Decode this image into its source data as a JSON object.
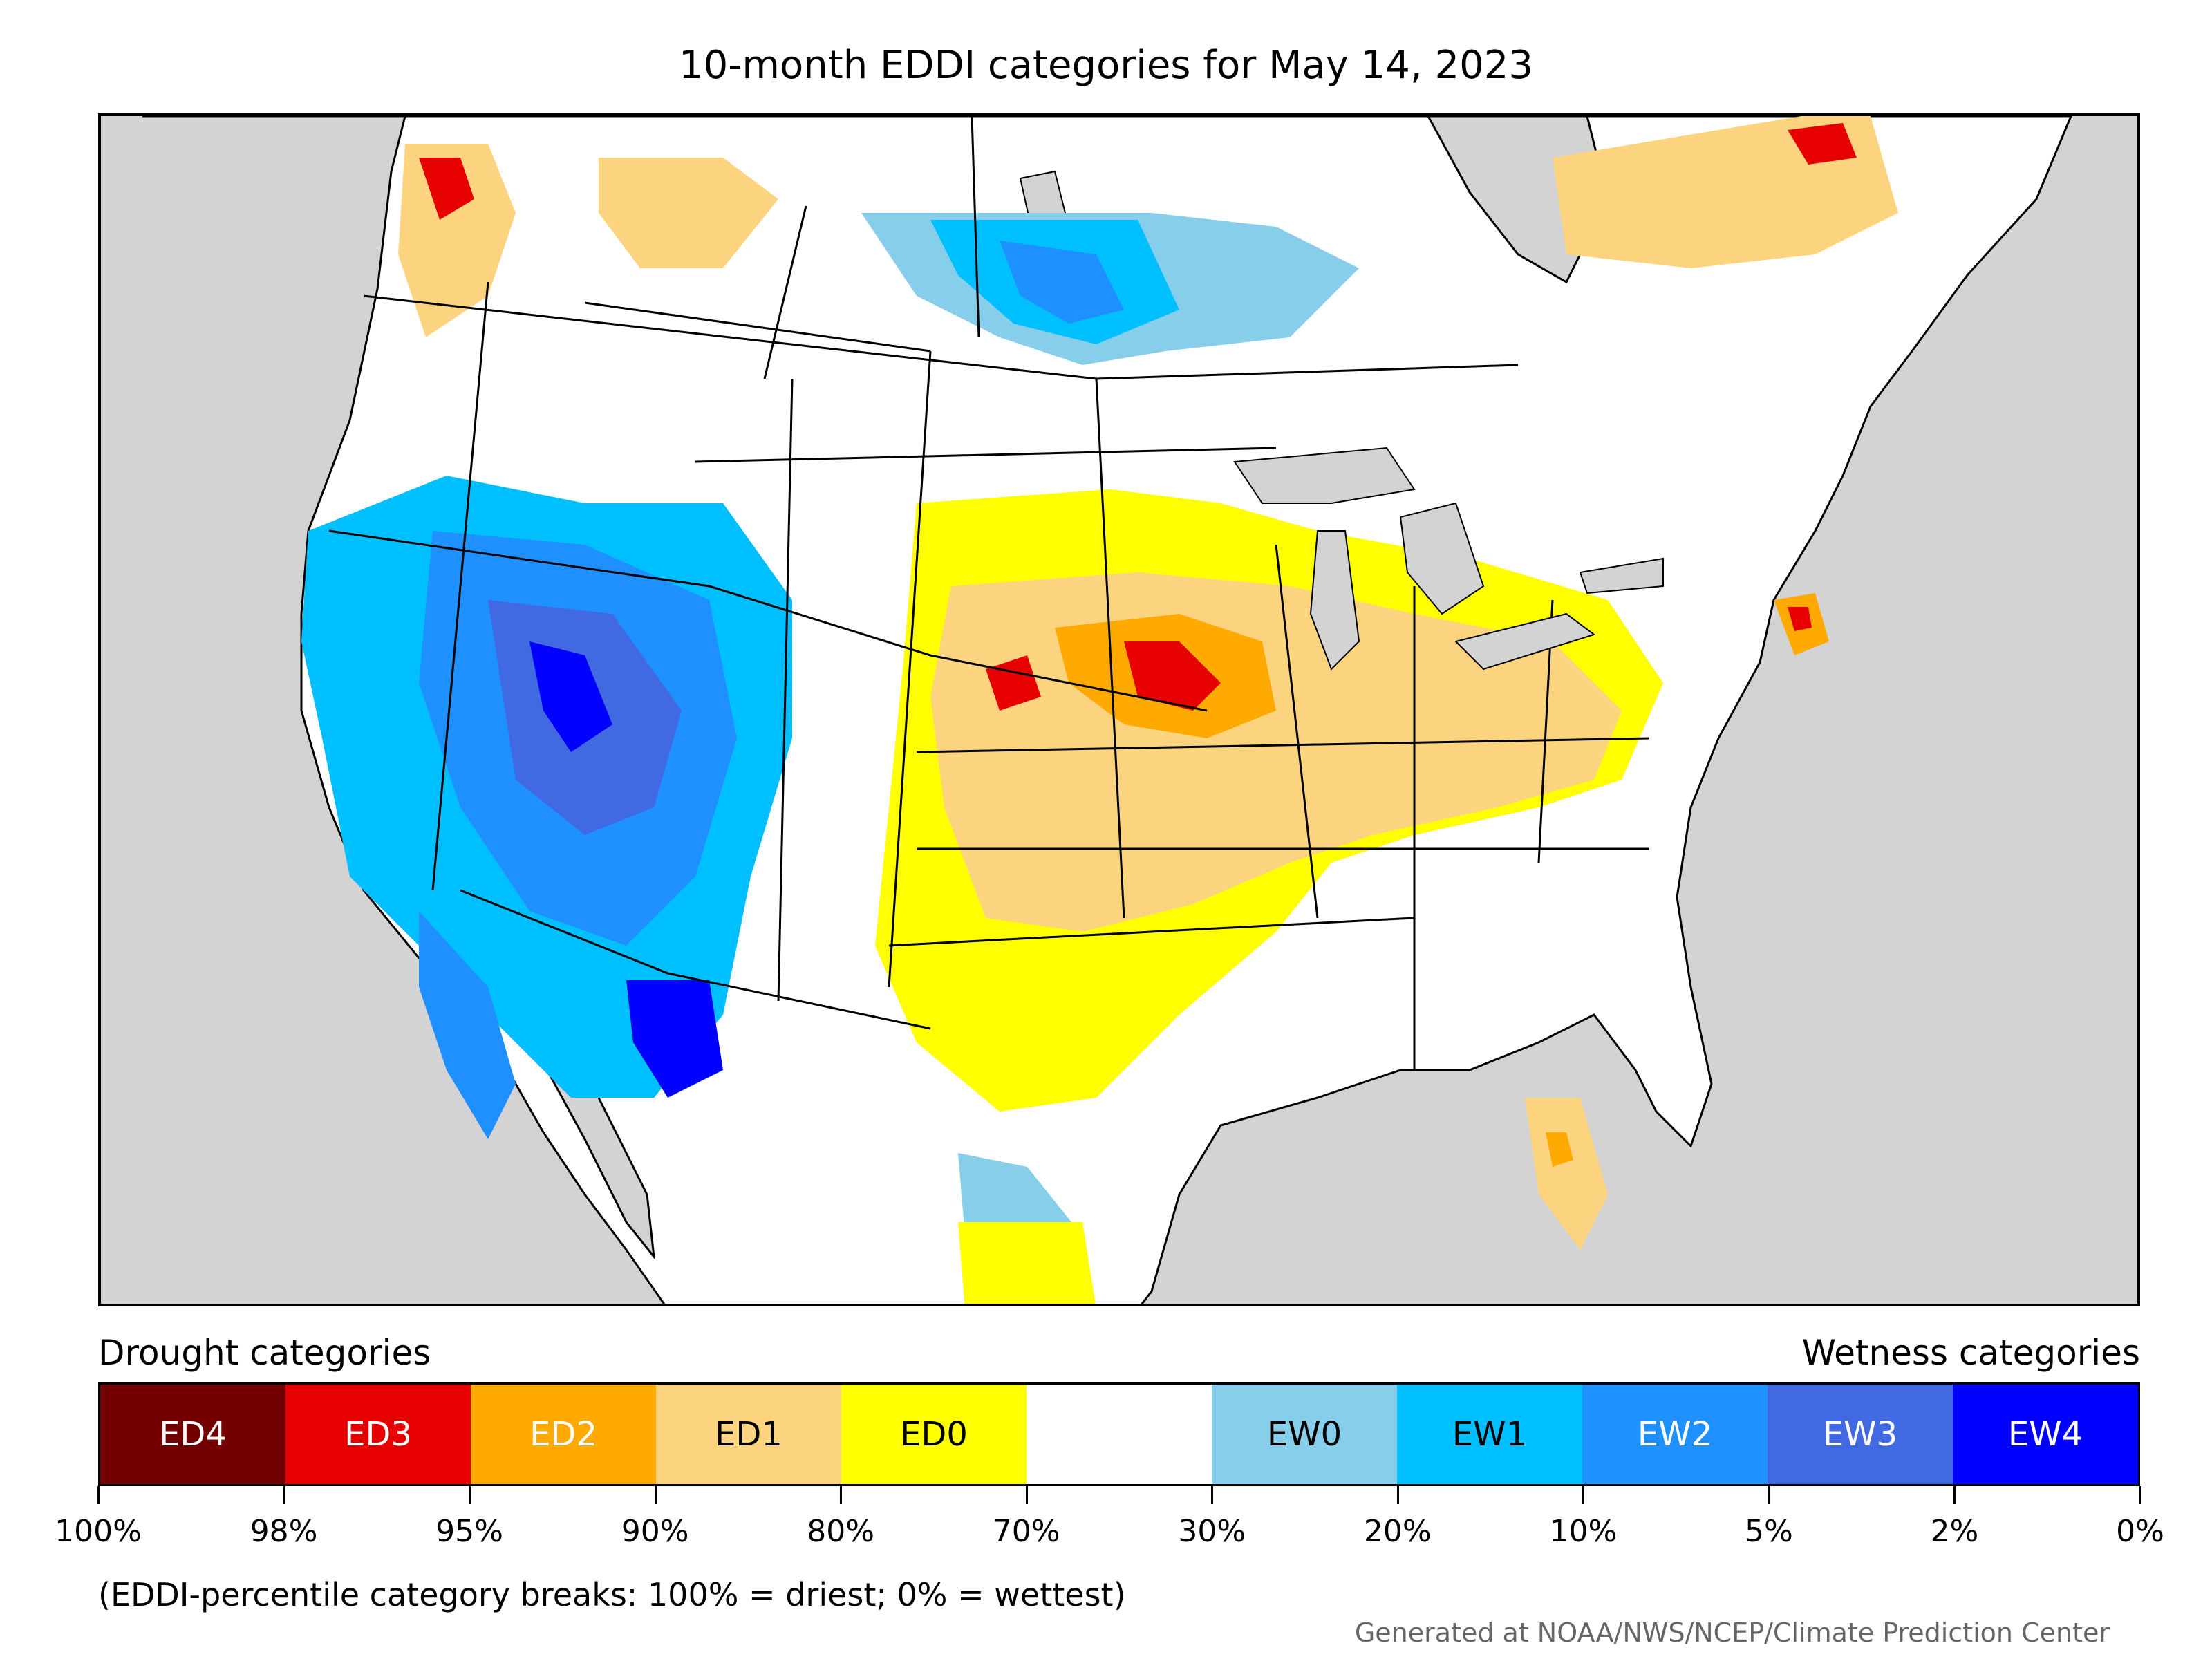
{
  "title": "10-month EDDI categories for May 14, 2023",
  "legend": {
    "drought_heading": "Drought categories",
    "wetness_heading": "Wetness categories",
    "categories": [
      {
        "label": "ED4",
        "color": "#730000",
        "text_color": "#ffffff"
      },
      {
        "label": "ED3",
        "color": "#e60000",
        "text_color": "#ffffff"
      },
      {
        "label": "ED2",
        "color": "#ffaa00",
        "text_color": "#ffffff"
      },
      {
        "label": "ED1",
        "color": "#fcd37f",
        "text_color": "#000000"
      },
      {
        "label": "ED0",
        "color": "#ffff00",
        "text_color": "#000000"
      },
      {
        "label": "",
        "color": "#ffffff",
        "text_color": "#000000"
      },
      {
        "label": "EW0",
        "color": "#87ceeb",
        "text_color": "#000000"
      },
      {
        "label": "EW1",
        "color": "#00bfff",
        "text_color": "#000000"
      },
      {
        "label": "EW2",
        "color": "#1e90ff",
        "text_color": "#ffffff"
      },
      {
        "label": "EW3",
        "color": "#4169e1",
        "text_color": "#ffffff"
      },
      {
        "label": "EW4",
        "color": "#0000ff",
        "text_color": "#ffffff"
      }
    ],
    "breaks": [
      "100%",
      "98%",
      "95%",
      "90%",
      "80%",
      "70%",
      "30%",
      "20%",
      "10%",
      "5%",
      "2%",
      "0%"
    ]
  },
  "footnote": "(EDDI-percentile category breaks: 100% = driest; 0% = wettest)",
  "credit": "Generated at NOAA/NWS/NCEP/Climate Prediction Center",
  "map": {
    "ocean_color": "#d3d3d3",
    "land_color": "#ffffff",
    "border_color": "#000000"
  }
}
